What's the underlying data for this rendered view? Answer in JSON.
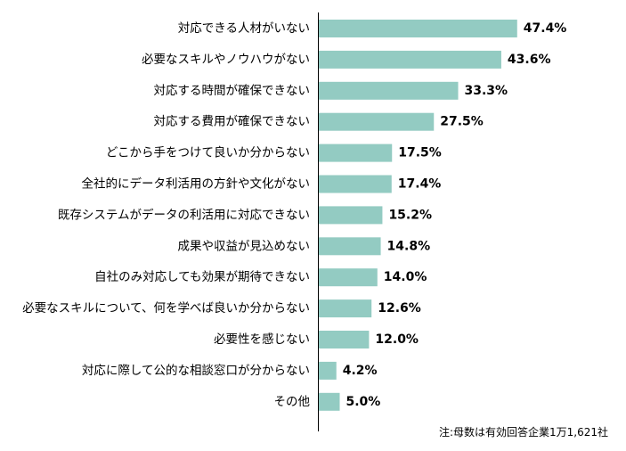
{
  "chart_data": {
    "type": "bar",
    "orientation": "horizontal",
    "categories": [
      "対応できる人材がいない",
      "必要なスキルやノウハウがない",
      "対応する時間が確保できない",
      "対応する費用が確保できない",
      "どこから手をつけて良いか分からない",
      "全社的にデータ利活用の方針や文化がない",
      "既存システムがデータの利活用に対応できない",
      "成果や収益が見込めない",
      "自社のみ対応しても効果が期待できない",
      "必要なスキルについて、何を学べば良いか分からない",
      "必要性を感じない",
      "対応に際して公的な相談窓口が分からない",
      "その他"
    ],
    "values": [
      47.4,
      43.6,
      33.3,
      27.5,
      17.5,
      17.4,
      15.2,
      14.8,
      14.0,
      12.6,
      12.0,
      4.2,
      5.0
    ],
    "value_labels": [
      "47.4%",
      "43.6%",
      "33.3%",
      "27.5%",
      "17.5%",
      "17.4%",
      "15.2%",
      "14.8%",
      "14.0%",
      "12.6%",
      "12.0%",
      "4.2%",
      "5.0%"
    ],
    "bar_color": "#93cbc2",
    "xlim": [
      0,
      50
    ],
    "grid": false,
    "legend": "none"
  },
  "note": "注:母数は有効回答企業1万1,621社"
}
